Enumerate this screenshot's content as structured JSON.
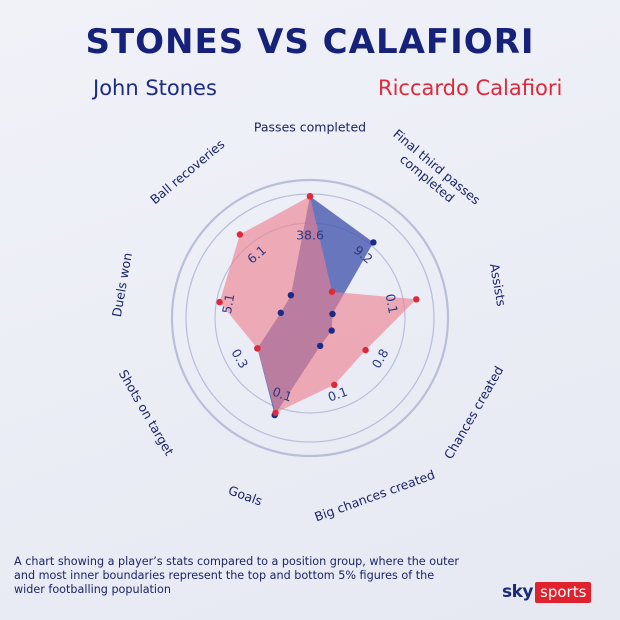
{
  "title": "STONES VS CALAFIORI",
  "players": {
    "a": "John Stones",
    "b": "Riccardo Calafiori"
  },
  "colors": {
    "title": "#16217a",
    "player_a": "#1d2b85",
    "player_b": "#e0283b",
    "fill_a": "#4b5cb0",
    "fill_b": "#ee7f8e",
    "rings": "#b9bfd9"
  },
  "chart_data": {
    "type": "radar",
    "axes": [
      "Passes completed",
      "Final third passes completed",
      "Assists",
      "Chances created",
      "Big chances created",
      "Goals",
      "Shots on target",
      "Duels won",
      "Ball recoveries"
    ],
    "value_labels": [
      "38.6",
      "9.2",
      "0.1",
      "0.8",
      "0.1",
      "0.1",
      "0.3",
      "5.1",
      "6.1"
    ],
    "percentile_range": [
      0,
      1
    ],
    "series": [
      {
        "name": "John Stones",
        "color": "#1d2b85",
        "values": [
          0.98,
          0.78,
          0.12,
          0.14,
          0.18,
          0.82,
          0.45,
          0.18,
          0.18
        ]
      },
      {
        "name": "Riccardo Calafiori",
        "color": "#e0283b",
        "values": [
          0.98,
          0.22,
          0.86,
          0.48,
          0.54,
          0.8,
          0.45,
          0.72,
          0.87
        ]
      }
    ]
  },
  "footnote": "A chart showing a player’s stats compared to a position group,  where the outer and most inner boundaries represent the top  and bottom 5% figures of the wider footballing population",
  "brand": {
    "sky": "sky",
    "sports": "sports"
  }
}
